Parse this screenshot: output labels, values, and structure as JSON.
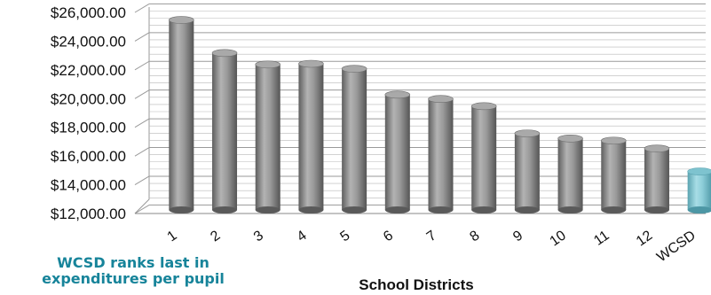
{
  "callout": {
    "line1": "WCSD ranks last in",
    "line2": "expenditures per pupil"
  },
  "colors": {
    "bar": "#8d8d8d",
    "highlight_bar": "#7ec3cf",
    "grid": "#b8b8b8",
    "callout_text": "#17849a"
  },
  "chart_data": {
    "type": "bar",
    "title": "",
    "xlabel": "School Districts",
    "ylabel": "",
    "ylim": [
      12000,
      26000
    ],
    "y_ticks": [
      "$12,000.00",
      "$14,000.00",
      "$16,000.00",
      "$18,000.00",
      "$20,000.00",
      "$22,000.00",
      "$24,000.00",
      "$26,000.00"
    ],
    "y_tick_values": [
      12000,
      14000,
      16000,
      18000,
      20000,
      22000,
      24000,
      26000
    ],
    "categories": [
      "1",
      "2",
      "3",
      "4",
      "5",
      "6",
      "7",
      "8",
      "9",
      "10",
      "11",
      "12",
      "WCSD"
    ],
    "values": [
      25350,
      23050,
      22250,
      22300,
      21950,
      20150,
      19850,
      19350,
      17450,
      17100,
      16950,
      16400,
      14800
    ],
    "highlight_category": "WCSD",
    "grid": true,
    "legend": "none"
  }
}
